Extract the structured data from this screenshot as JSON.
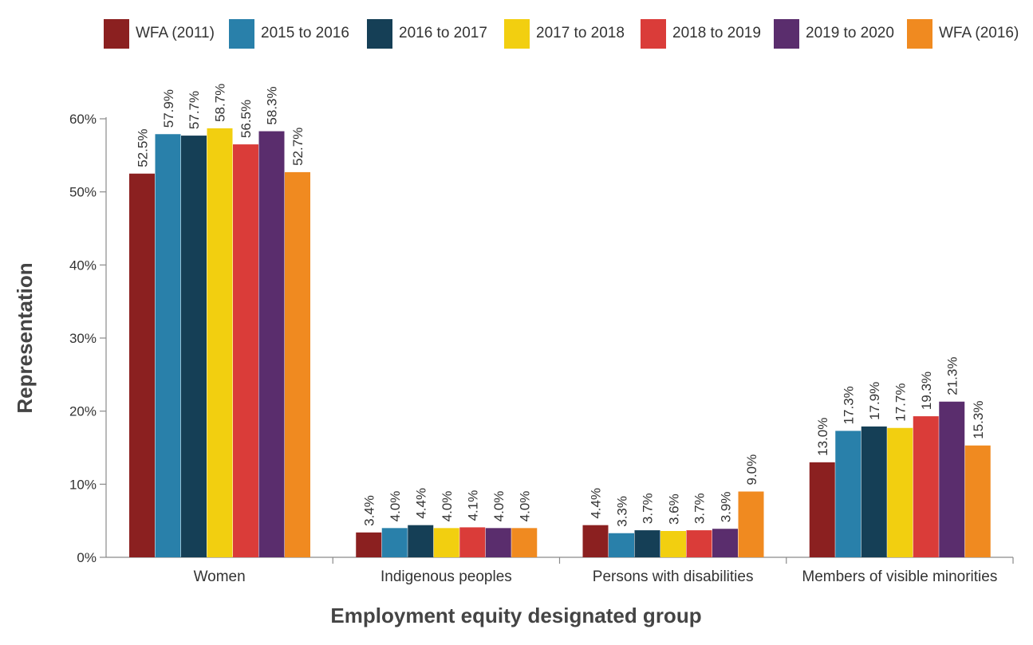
{
  "chart_data": {
    "type": "bar",
    "categories": [
      "Women",
      "Indigenous peoples",
      "Persons with disabilities",
      "Members of visible minorities"
    ],
    "series": [
      {
        "name": "WFA (2011)",
        "color": "#8b2020",
        "values": [
          52.5,
          3.4,
          4.4,
          13.0
        ],
        "labels": [
          "52.5%",
          "3.4%",
          "4.4%",
          "13.0%"
        ]
      },
      {
        "name": "2015 to 2016",
        "color": "#2980aa",
        "values": [
          57.9,
          4.0,
          3.3,
          17.3
        ],
        "labels": [
          "57.9%",
          "4.0%",
          "3.3%",
          "17.3%"
        ]
      },
      {
        "name": "2016 to 2017",
        "color": "#153f56",
        "values": [
          57.7,
          4.4,
          3.7,
          17.9
        ],
        "labels": [
          "57.7%",
          "4.4%",
          "3.7%",
          "17.9%"
        ]
      },
      {
        "name": "2017 to 2018",
        "color": "#f2cf10",
        "values": [
          58.7,
          4.0,
          3.6,
          17.7
        ],
        "labels": [
          "58.7%",
          "4.0%",
          "3.6%",
          "17.7%"
        ]
      },
      {
        "name": "2018 to 2019",
        "color": "#da3c39",
        "values": [
          56.5,
          4.1,
          3.7,
          19.3
        ],
        "labels": [
          "56.5%",
          "4.1%",
          "3.7%",
          "19.3%"
        ]
      },
      {
        "name": "2019 to 2020",
        "color": "#5a2d6d",
        "values": [
          58.3,
          4.0,
          3.9,
          21.3
        ],
        "labels": [
          "58.3%",
          "4.0%",
          "3.9%",
          "21.3%"
        ]
      },
      {
        "name": "WFA (2016)",
        "color": "#f08a20",
        "values": [
          52.7,
          4.0,
          9.0,
          15.3
        ],
        "labels": [
          "52.7%",
          "4.0%",
          "9.0%",
          "15.3%"
        ]
      }
    ],
    "xlabel": "Employment equity designated group",
    "ylabel": "Representation",
    "ylim": [
      0,
      60
    ],
    "yticks": [
      0,
      10,
      20,
      30,
      40,
      50,
      60
    ],
    "ytick_labels": [
      "0%",
      "10%",
      "20%",
      "30%",
      "40%",
      "50%",
      "60%"
    ],
    "grid": false,
    "legend": "top"
  }
}
